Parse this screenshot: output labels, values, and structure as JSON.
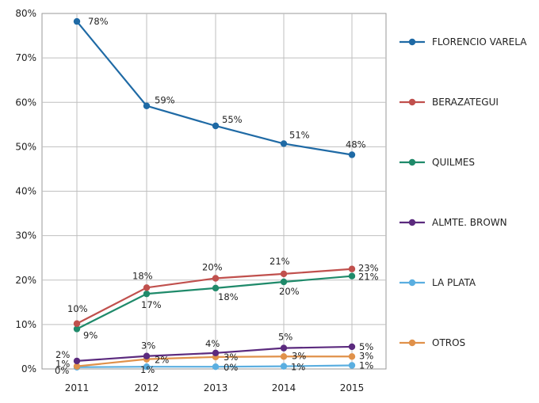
{
  "chart_data": {
    "type": "line",
    "title": "",
    "xlabel": "",
    "ylabel": "",
    "x": [
      "2011",
      "2012",
      "2013",
      "2014",
      "2015"
    ],
    "ylim": [
      0,
      80
    ],
    "yticks": [
      "0%",
      "10%",
      "20%",
      "30%",
      "40%",
      "50%",
      "60%",
      "70%",
      "80%"
    ],
    "grid": true,
    "legend_position": "right",
    "series": [
      {
        "name": "FLORENCIO VARELA",
        "color": "#1f6aa5",
        "values": [
          78.2,
          59.2,
          54.7,
          50.7,
          48.2
        ],
        "labels": [
          "78%",
          "59%",
          "55%",
          "51%",
          "48%"
        ]
      },
      {
        "name": "BERAZATEGUI",
        "color": "#c0504d",
        "values": [
          10.2,
          18.3,
          20.4,
          21.4,
          22.5
        ],
        "labels": [
          "10%",
          "18%",
          "20%",
          "21%",
          "23%"
        ]
      },
      {
        "name": "QUILMES",
        "color": "#1f8a6a",
        "values": [
          9.0,
          16.9,
          18.2,
          19.6,
          20.9
        ],
        "labels": [
          "9%",
          "17%",
          "18%",
          "20%",
          "21%"
        ]
      },
      {
        "name": "ALMTE. BROWN",
        "color": "#5b2a7e",
        "values": [
          1.8,
          2.9,
          3.6,
          4.7,
          5.0
        ],
        "labels": [
          "2%",
          "3%",
          "4%",
          "5%",
          "5%"
        ]
      },
      {
        "name": "LA PLATA",
        "color": "#5aaee0",
        "values": [
          0.4,
          0.5,
          0.5,
          0.6,
          0.8
        ],
        "labels": [
          "0%",
          "1%",
          "0%",
          "1%",
          "1%"
        ]
      },
      {
        "name": "OTROS",
        "color": "#e0914a",
        "values": [
          0.6,
          2.2,
          2.7,
          2.8,
          2.8
        ],
        "labels": [
          "1%",
          "2%",
          "3%",
          "3%",
          "3%"
        ]
      }
    ]
  }
}
